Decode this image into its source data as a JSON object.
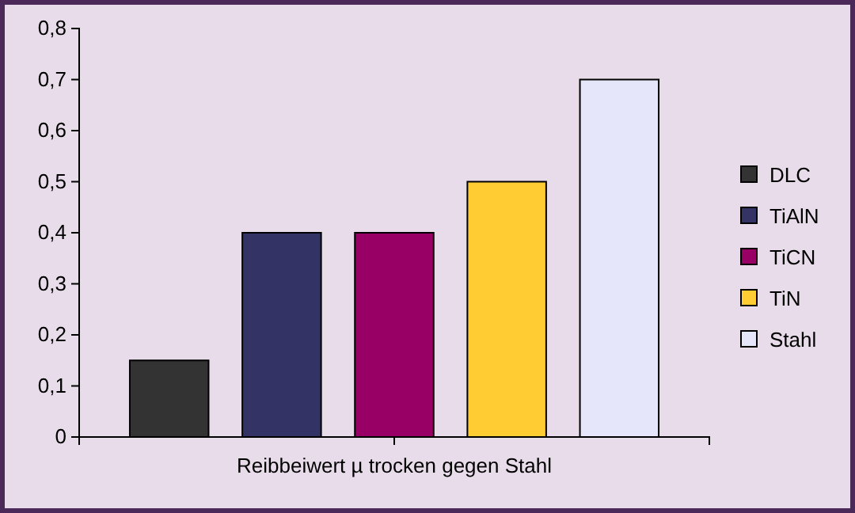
{
  "chart_data": {
    "type": "bar",
    "categories": [
      "Reibbeiwert µ trocken gegen Stahl"
    ],
    "series": [
      {
        "name": "DLC",
        "color": "#333333",
        "values": [
          0.15
        ]
      },
      {
        "name": "TiAlN",
        "color": "#333366",
        "values": [
          0.4
        ]
      },
      {
        "name": "TiCN",
        "color": "#990066",
        "values": [
          0.4
        ]
      },
      {
        "name": "TiN",
        "color": "#ffcc33",
        "values": [
          0.5
        ]
      },
      {
        "name": "Stahl",
        "color": "#e6e6fa",
        "values": [
          0.7
        ]
      }
    ],
    "ylim": [
      0,
      0.8
    ],
    "yticks": [
      {
        "value": 0,
        "label": "0"
      },
      {
        "value": 0.1,
        "label": "0,1"
      },
      {
        "value": 0.2,
        "label": "0,2"
      },
      {
        "value": 0.3,
        "label": "0,3"
      },
      {
        "value": 0.4,
        "label": "0,4"
      },
      {
        "value": 0.5,
        "label": "0,5"
      },
      {
        "value": 0.6,
        "label": "0,6"
      },
      {
        "value": 0.7,
        "label": "0,7"
      },
      {
        "value": 0.8,
        "label": "0,8"
      }
    ],
    "grid": false,
    "legend": "right"
  }
}
